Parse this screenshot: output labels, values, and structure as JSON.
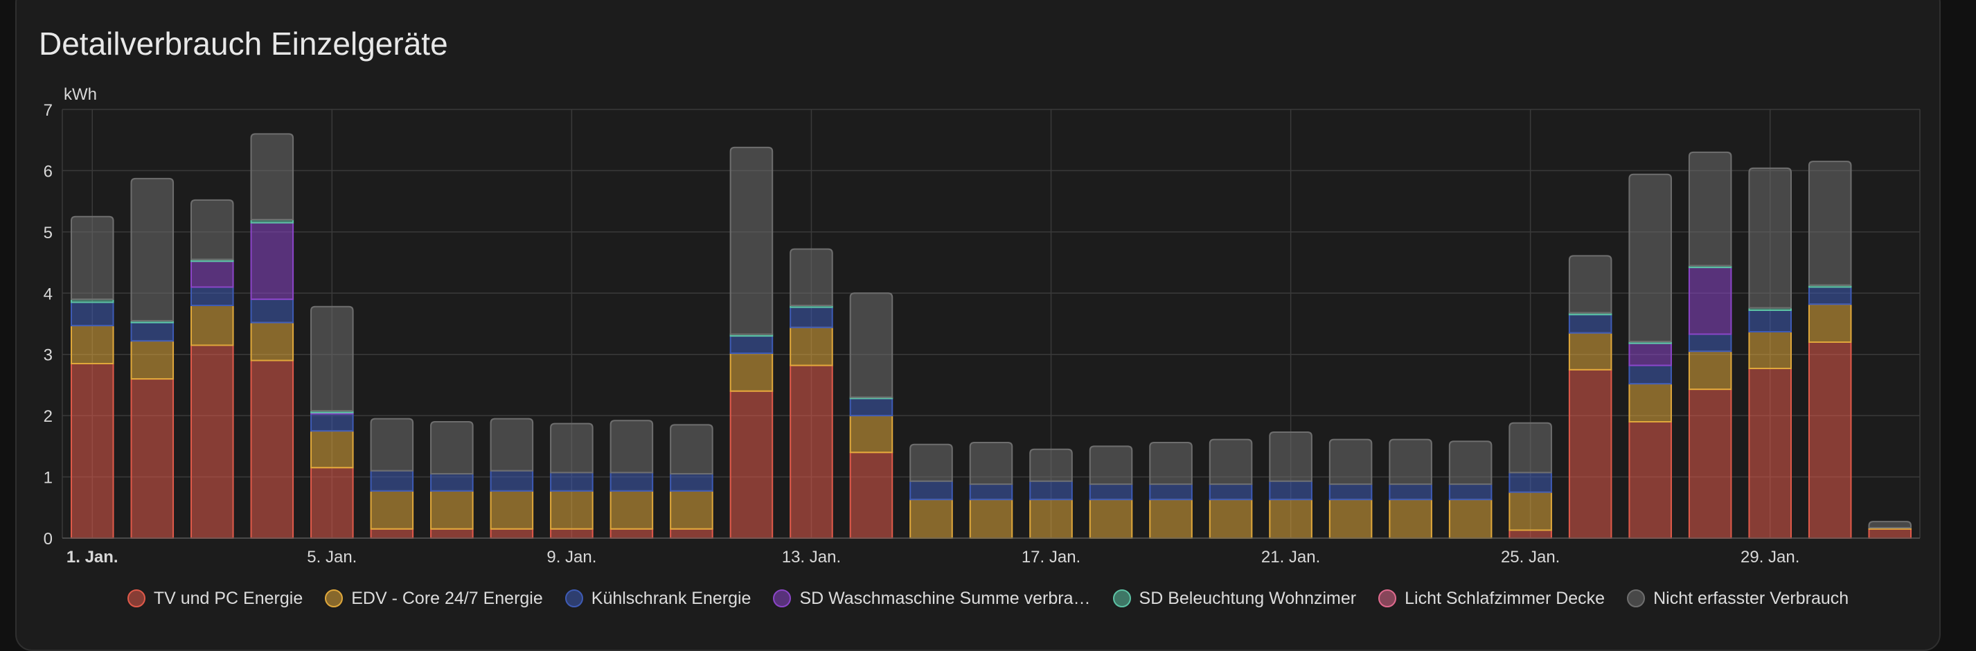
{
  "card": {
    "title": "Detailverbrauch Einzelgeräte"
  },
  "chart_data": {
    "type": "bar",
    "stacked": true,
    "title": "Detailverbrauch Einzelgeräte",
    "ylabel": "kWh",
    "ylim": [
      0,
      7
    ],
    "yticks": [
      0,
      1,
      2,
      3,
      4,
      5,
      6,
      7
    ],
    "grid": true,
    "legend_position": "bottom",
    "categories": [
      "1. Jan.",
      "2. Jan.",
      "3. Jan.",
      "4. Jan.",
      "5. Jan.",
      "6. Jan.",
      "7. Jan.",
      "8. Jan.",
      "9. Jan.",
      "10. Jan.",
      "11. Jan.",
      "12. Jan.",
      "13. Jan.",
      "14. Jan.",
      "15. Jan.",
      "16. Jan.",
      "17. Jan.",
      "18. Jan.",
      "19. Jan.",
      "20. Jan.",
      "21. Jan.",
      "22. Jan.",
      "23. Jan.",
      "24. Jan.",
      "25. Jan.",
      "26. Jan.",
      "27. Jan.",
      "28. Jan.",
      "29. Jan.",
      "30. Jan.",
      "31. Jan."
    ],
    "xtick_labels": [
      {
        "index": 0,
        "label": "1. Jan.",
        "bold": true
      },
      {
        "index": 4,
        "label": "5. Jan.",
        "bold": false
      },
      {
        "index": 8,
        "label": "9. Jan.",
        "bold": false
      },
      {
        "index": 12,
        "label": "13. Jan.",
        "bold": false
      },
      {
        "index": 16,
        "label": "17. Jan.",
        "bold": false
      },
      {
        "index": 20,
        "label": "21. Jan.",
        "bold": false
      },
      {
        "index": 24,
        "label": "25. Jan.",
        "bold": false
      },
      {
        "index": 28,
        "label": "29. Jan.",
        "bold": false
      }
    ],
    "series": [
      {
        "name": "TV und PC Energie",
        "color": "#e05a4a",
        "values": [
          2.85,
          2.6,
          3.15,
          2.9,
          1.15,
          0.15,
          0.15,
          0.15,
          0.15,
          0.15,
          0.15,
          2.4,
          2.82,
          1.4,
          0,
          0,
          0,
          0,
          0,
          0,
          0,
          0,
          0,
          0,
          0.13,
          2.75,
          1.9,
          2.43,
          2.77,
          3.2,
          0.15
        ]
      },
      {
        "name": "EDV - Core 24/7 Energie",
        "color": "#e0a83b",
        "values": [
          0.62,
          0.62,
          0.65,
          0.62,
          0.6,
          0.62,
          0.62,
          0.62,
          0.62,
          0.62,
          0.62,
          0.62,
          0.62,
          0.6,
          0.63,
          0.63,
          0.63,
          0.63,
          0.63,
          0.63,
          0.63,
          0.63,
          0.63,
          0.63,
          0.62,
          0.6,
          0.62,
          0.62,
          0.6,
          0.62,
          0.02
        ]
      },
      {
        "name": "Kühlschrank Energie",
        "color": "#3e5bb5",
        "values": [
          0.38,
          0.3,
          0.3,
          0.38,
          0.28,
          0.33,
          0.28,
          0.33,
          0.3,
          0.3,
          0.28,
          0.28,
          0.33,
          0.28,
          0.3,
          0.25,
          0.3,
          0.25,
          0.25,
          0.25,
          0.3,
          0.25,
          0.25,
          0.25,
          0.32,
          0.3,
          0.3,
          0.28,
          0.35,
          0.28,
          0
        ]
      },
      {
        "name": "SD Waschmaschine Summe verbra…",
        "color": "#8b45c8",
        "values": [
          0,
          0,
          0.42,
          1.25,
          0.02,
          0,
          0,
          0,
          0,
          0,
          0,
          0,
          0,
          0,
          0,
          0,
          0,
          0,
          0,
          0,
          0,
          0,
          0,
          0,
          0,
          0,
          0.36,
          1.09,
          0,
          0,
          0
        ]
      },
      {
        "name": "SD Beleuchtung Wohnzimer",
        "color": "#5cc2a4",
        "values": [
          0.05,
          0.03,
          0.03,
          0.05,
          0.03,
          0,
          0,
          0,
          0,
          0,
          0,
          0.03,
          0.03,
          0.02,
          0,
          0,
          0,
          0,
          0,
          0,
          0,
          0,
          0,
          0,
          0,
          0.03,
          0.03,
          0.03,
          0.04,
          0.03,
          0
        ]
      },
      {
        "name": "Licht Schlafzimmer Decke",
        "color": "#e06a8e",
        "values": [
          0,
          0,
          0,
          0,
          0,
          0,
          0,
          0,
          0,
          0,
          0,
          0,
          0,
          0,
          0,
          0,
          0,
          0,
          0,
          0,
          0,
          0,
          0,
          0,
          0,
          0,
          0,
          0,
          0,
          0,
          0
        ]
      },
      {
        "name": "Nicht erfasster Verbrauch",
        "color": "#6e6e6e",
        "values": [
          1.35,
          2.32,
          0.97,
          1.4,
          1.7,
          0.85,
          0.85,
          0.85,
          0.8,
          0.85,
          0.8,
          3.05,
          0.92,
          1.7,
          0.6,
          0.68,
          0.52,
          0.62,
          0.68,
          0.73,
          0.8,
          0.73,
          0.73,
          0.7,
          0.81,
          0.93,
          2.73,
          1.85,
          2.28,
          2.02,
          0.1
        ]
      }
    ]
  },
  "legend": {
    "items": [
      {
        "label": "TV und PC Energie",
        "color": "#e05a4a"
      },
      {
        "label": "EDV - Core 24/7 Energie",
        "color": "#e0a83b"
      },
      {
        "label": "Kühlschrank Energie",
        "color": "#3e5bb5"
      },
      {
        "label": "SD Waschmaschine Summe verbra…",
        "color": "#8b45c8"
      },
      {
        "label": "SD Beleuchtung Wohnzimer",
        "color": "#5cc2a4"
      },
      {
        "label": "Licht Schlafzimmer Decke",
        "color": "#e06a8e"
      },
      {
        "label": "Nicht erfasster Verbrauch",
        "color": "#6e6e6e"
      }
    ]
  }
}
